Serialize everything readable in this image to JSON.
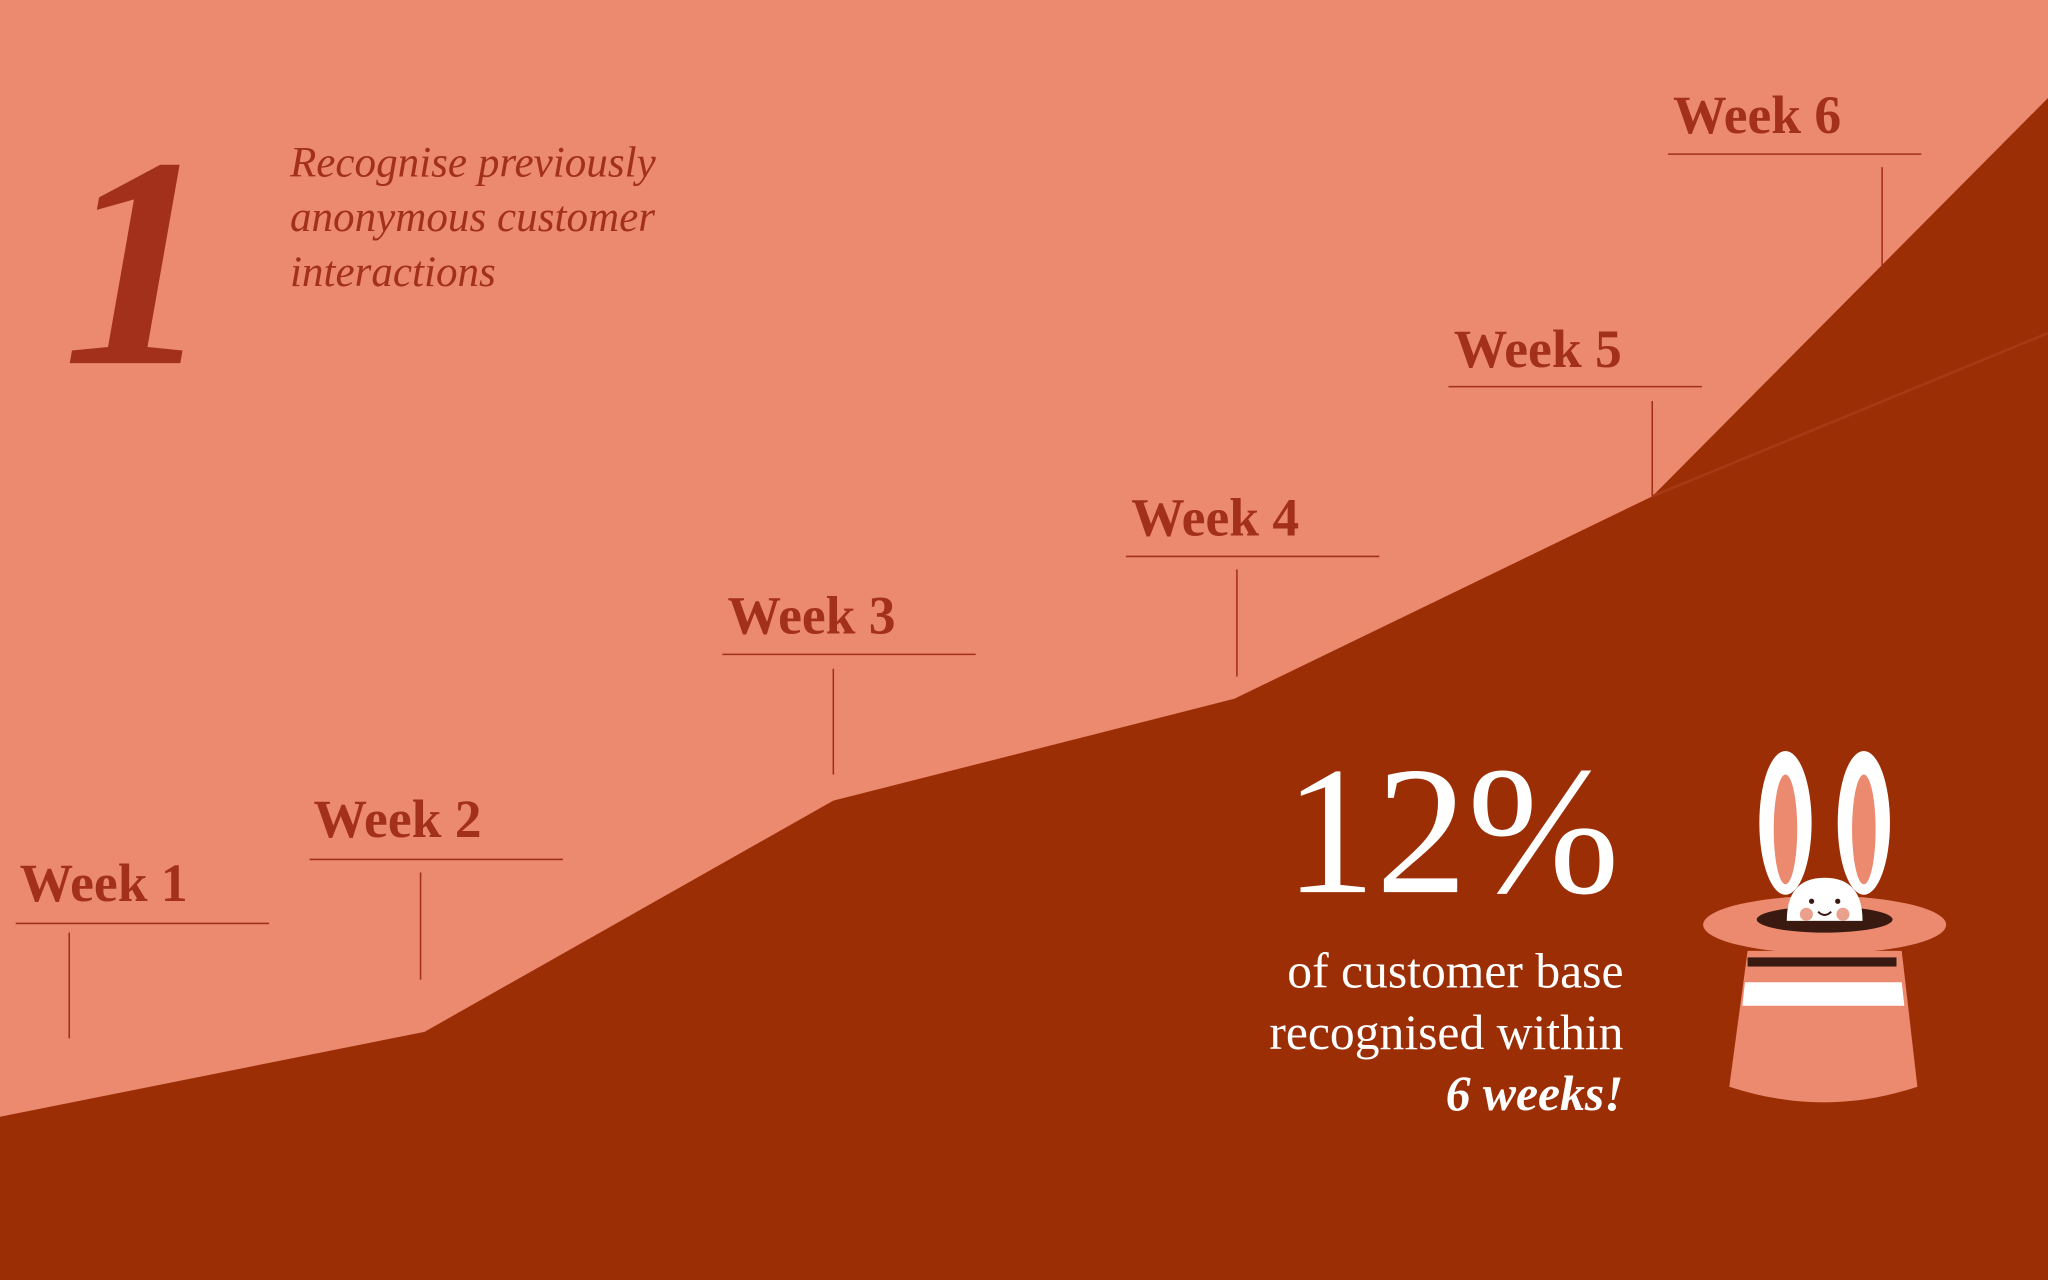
{
  "step": {
    "number": "1",
    "description": [
      "Recognise previously",
      "anonymous customer",
      "interactions"
    ]
  },
  "weeks": [
    "Week 1",
    "Week 2",
    "Week 3",
    "Week 4",
    "Week 5",
    "Week 6"
  ],
  "stat": {
    "value": "12%",
    "caption": [
      "of customer base",
      "recognised within"
    ],
    "emphasis": "6 weeks!"
  }
}
